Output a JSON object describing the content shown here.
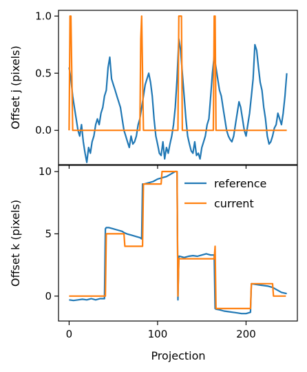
{
  "chart_data": [
    {
      "type": "line",
      "title": "",
      "xlabel": "",
      "ylabel": "Offset j (pixels)",
      "xlim": [
        -12,
        258
      ],
      "ylim": [
        -0.3,
        1.05
      ],
      "x_ticks": [
        0,
        100,
        200
      ],
      "x_tick_labels": [
        "",
        "",
        ""
      ],
      "y_ticks": [
        0.0,
        0.5,
        1.0
      ],
      "y_tick_labels": [
        "0.0",
        "0.5",
        "1.0"
      ],
      "grid": false,
      "series": [
        {
          "color": "#1f77b4",
          "x": [
            0,
            2,
            4,
            6,
            8,
            10,
            12,
            14,
            16,
            18,
            20,
            22,
            24,
            26,
            28,
            30,
            32,
            34,
            36,
            38,
            40,
            42,
            44,
            46,
            48,
            50,
            52,
            54,
            56,
            58,
            60,
            62,
            64,
            66,
            68,
            70,
            72,
            74,
            76,
            78,
            80,
            82,
            84,
            86,
            88,
            90,
            92,
            94,
            96,
            98,
            100,
            102,
            104,
            106,
            108,
            110,
            112,
            114,
            116,
            118,
            120,
            122,
            124,
            126,
            128,
            130,
            132,
            134,
            136,
            138,
            140,
            142,
            144,
            146,
            148,
            150,
            152,
            154,
            156,
            158,
            160,
            162,
            164,
            166,
            168,
            170,
            172,
            174,
            176,
            178,
            180,
            182,
            184,
            186,
            188,
            190,
            192,
            194,
            196,
            198,
            200,
            202,
            204,
            206,
            208,
            210,
            212,
            214,
            216,
            218,
            220,
            222,
            224,
            226,
            228,
            230,
            232,
            234,
            236,
            238,
            240,
            242,
            244,
            246
          ],
          "values": [
            0.55,
            0.45,
            0.3,
            0.2,
            0.1,
            0.0,
            -0.05,
            0.05,
            -0.1,
            -0.2,
            -0.28,
            -0.15,
            -0.2,
            -0.1,
            -0.05,
            0.05,
            0.1,
            0.05,
            0.15,
            0.2,
            0.3,
            0.35,
            0.55,
            0.64,
            0.45,
            0.4,
            0.35,
            0.3,
            0.25,
            0.2,
            0.1,
            0.0,
            -0.05,
            -0.1,
            -0.15,
            -0.05,
            -0.12,
            -0.1,
            -0.05,
            0.05,
            0.1,
            0.2,
            0.3,
            0.4,
            0.45,
            0.5,
            0.42,
            0.3,
            0.1,
            -0.05,
            -0.12,
            -0.2,
            -0.22,
            -0.1,
            -0.25,
            -0.15,
            -0.2,
            -0.12,
            -0.05,
            0.05,
            0.2,
            0.45,
            0.8,
            0.7,
            0.5,
            0.3,
            0.1,
            -0.05,
            -0.12,
            -0.18,
            -0.2,
            -0.1,
            -0.22,
            -0.2,
            -0.25,
            -0.15,
            -0.1,
            -0.05,
            0.05,
            0.1,
            0.3,
            0.5,
            0.65,
            0.55,
            0.45,
            0.35,
            0.3,
            0.2,
            0.1,
            0.0,
            -0.05,
            -0.08,
            -0.1,
            -0.05,
            0.05,
            0.15,
            0.25,
            0.2,
            0.1,
            0.0,
            -0.05,
            0.05,
            0.15,
            0.3,
            0.45,
            0.75,
            0.7,
            0.55,
            0.42,
            0.35,
            0.2,
            0.1,
            -0.05,
            -0.12,
            -0.1,
            -0.05,
            0.02,
            0.05,
            0.15,
            0.1,
            0.05,
            0.15,
            0.3,
            0.5
          ]
        },
        {
          "color": "#ff7f0e",
          "x": [
            0,
            1,
            2,
            3,
            4,
            5,
            6,
            80,
            81,
            82,
            83,
            84,
            85,
            86,
            123,
            124,
            125,
            126,
            127,
            128,
            129,
            130,
            163,
            164,
            165,
            166,
            167,
            246
          ],
          "values": [
            0,
            1,
            1,
            0.5,
            0,
            0,
            0,
            0,
            0.8,
            1,
            0.5,
            0,
            0,
            0,
            0,
            1,
            1,
            1,
            1,
            0,
            0,
            0,
            0,
            1,
            1,
            0,
            0,
            0
          ]
        }
      ]
    },
    {
      "type": "line",
      "title": "",
      "xlabel": "Projection",
      "ylabel": "Offset k (pixels)",
      "xlim": [
        -12,
        258
      ],
      "ylim": [
        -2,
        10.5
      ],
      "x_ticks": [
        0,
        100,
        200
      ],
      "x_tick_labels": [
        "0",
        "100",
        "200"
      ],
      "y_ticks": [
        0,
        5,
        10
      ],
      "y_tick_labels": [
        "0",
        "5",
        "10"
      ],
      "grid": false,
      "legend": {
        "position": "top-right"
      },
      "series": [
        {
          "name": "reference",
          "color": "#1f77b4",
          "x": [
            0,
            5,
            10,
            15,
            20,
            25,
            30,
            35,
            40,
            41,
            42,
            45,
            50,
            55,
            60,
            62,
            65,
            70,
            75,
            80,
            82,
            83,
            85,
            90,
            95,
            100,
            105,
            110,
            115,
            120,
            122,
            123,
            124,
            125,
            130,
            135,
            140,
            145,
            150,
            155,
            160,
            164,
            165,
            166,
            170,
            175,
            180,
            185,
            190,
            195,
            200,
            205,
            206,
            210,
            215,
            220,
            225,
            230,
            235,
            240,
            246
          ],
          "values": [
            -0.3,
            -0.35,
            -0.3,
            -0.25,
            -0.3,
            -0.2,
            -0.3,
            -0.2,
            -0.2,
            5.4,
            5.5,
            5.5,
            5.4,
            5.3,
            5.2,
            5.1,
            5.0,
            4.9,
            4.8,
            4.7,
            4.6,
            9.0,
            9.0,
            9.1,
            9.2,
            9.4,
            9.5,
            9.6,
            9.8,
            10.0,
            10.0,
            -0.3,
            3.2,
            3.2,
            3.1,
            3.2,
            3.25,
            3.2,
            3.3,
            3.4,
            3.3,
            3.3,
            -1.0,
            -1.05,
            -1.1,
            -1.2,
            -1.25,
            -1.3,
            -1.35,
            -1.4,
            -1.4,
            -1.3,
            1.0,
            0.95,
            0.9,
            0.85,
            0.8,
            0.7,
            0.5,
            0.3,
            0.2
          ]
        },
        {
          "name": "current",
          "color": "#ff7f0e",
          "x": [
            0,
            41,
            42,
            62,
            63,
            83,
            84,
            104,
            105,
            122,
            123,
            124,
            125,
            164,
            165,
            166,
            205,
            206,
            230,
            231,
            245
          ],
          "values": [
            0,
            0,
            5,
            5,
            4,
            4,
            9,
            9,
            10,
            10,
            0,
            3,
            3,
            3,
            4,
            -1,
            -1,
            1,
            1,
            0,
            0
          ]
        }
      ]
    }
  ]
}
